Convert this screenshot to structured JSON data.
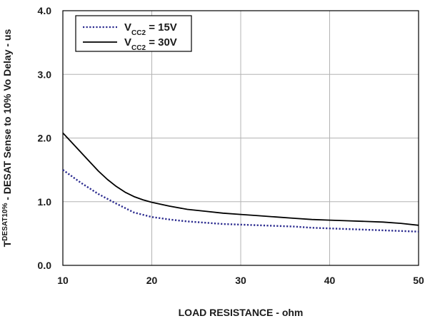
{
  "chart_data": {
    "type": "line",
    "xlabel": "LOAD RESISTANCE - ohm",
    "ylabel": {
      "prefix": "T",
      "sub": "DESAT10%",
      "rest": " - DESAT Sense to 10% Vo Delay - us"
    },
    "xlim": [
      10,
      50
    ],
    "ylim": [
      0,
      4
    ],
    "xticks": [
      10,
      20,
      30,
      40,
      50
    ],
    "xtick_labels": [
      "10",
      "20",
      "30",
      "40",
      "50"
    ],
    "yticks": [
      0,
      1,
      2,
      3,
      4
    ],
    "ytick_labels": [
      "0.0",
      "1.0",
      "2.0",
      "3.0",
      "4.0"
    ],
    "grid": true,
    "legend_position": "top-left",
    "series": [
      {
        "name": "V_CC2 = 15V",
        "legend": {
          "main": "V",
          "sub": "CC2",
          "rest": " = 15V"
        },
        "style": "dotted",
        "color": "#2b2b8f",
        "x": [
          10,
          12,
          14,
          16,
          18,
          20,
          22,
          24,
          26,
          28,
          30,
          32,
          34,
          36,
          38,
          40,
          42,
          44,
          46,
          48,
          50
        ],
        "y": [
          1.5,
          1.3,
          1.12,
          0.97,
          0.83,
          0.76,
          0.72,
          0.69,
          0.67,
          0.65,
          0.64,
          0.63,
          0.62,
          0.61,
          0.59,
          0.58,
          0.57,
          0.56,
          0.55,
          0.54,
          0.53
        ]
      },
      {
        "name": "V_CC2 = 30V",
        "legend": {
          "main": "V",
          "sub": "CC2",
          "rest": " = 30V"
        },
        "style": "solid",
        "color": "#000000",
        "x": [
          10,
          11,
          12,
          13,
          14,
          15,
          16,
          17,
          18,
          19,
          20,
          22,
          24,
          26,
          28,
          30,
          32,
          34,
          36,
          38,
          40,
          42,
          44,
          46,
          48,
          50
        ],
        "y": [
          2.08,
          1.93,
          1.78,
          1.63,
          1.48,
          1.35,
          1.24,
          1.15,
          1.08,
          1.03,
          0.99,
          0.93,
          0.88,
          0.85,
          0.82,
          0.8,
          0.78,
          0.76,
          0.74,
          0.72,
          0.71,
          0.7,
          0.69,
          0.68,
          0.66,
          0.63
        ]
      }
    ]
  }
}
